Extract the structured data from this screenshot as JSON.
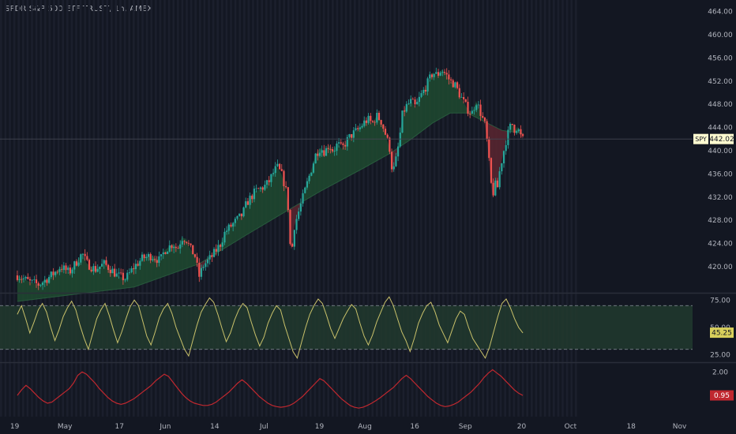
{
  "chart_title": "SPDR S&P 500 ETF TRUST, 1h, AMEX",
  "colors": {
    "background": "#131722",
    "bar_stripe": "#1b1f2c",
    "up": "#26a69a",
    "down": "#ef5350",
    "axis_text": "#b2b5be",
    "rsi_line": "#c9c16a",
    "rsi_band": "#213a2e",
    "lower_line": "#c0282f",
    "fill_up": "#1e4a30",
    "fill_down": "#5a2630",
    "last_price_bg": "#fffbd0",
    "rsi_label_bg": "#d8cf5b",
    "lower_label_bg": "#c0282f"
  },
  "chart_data": [
    {
      "type": "candlestick",
      "title": "SPDR S&P 500 ETF TRUST, 1h, AMEX",
      "symbol_label": "SPY",
      "last_value_label": "442.02",
      "ylim": [
        415.5,
        466
      ],
      "y_ticks": [
        "464.00",
        "460.00",
        "456.00",
        "452.00",
        "448.00",
        "444.00",
        "440.00",
        "436.00",
        "432.00",
        "428.00",
        "424.00",
        "420.00"
      ],
      "series_path": [
        [
          0,
          418.5
        ],
        [
          3,
          417.3
        ],
        [
          5,
          416.9
        ],
        [
          7,
          418.0
        ],
        [
          9,
          419.2
        ],
        [
          10,
          420.0
        ],
        [
          12,
          419.0
        ],
        [
          14,
          421.2
        ],
        [
          15,
          422.3
        ],
        [
          16,
          420.6
        ],
        [
          18,
          419.5
        ],
        [
          20,
          420.5
        ],
        [
          22,
          419.3
        ],
        [
          23,
          418.5
        ],
        [
          25,
          417.9
        ],
        [
          27,
          420.0
        ],
        [
          29,
          421.5
        ],
        [
          31,
          421.9
        ],
        [
          33,
          421.0
        ],
        [
          34,
          422.8
        ],
        [
          36,
          424.0
        ],
        [
          37,
          423.0
        ],
        [
          38,
          425.0
        ],
        [
          39,
          424.8
        ],
        [
          40,
          423.0
        ],
        [
          41,
          422.0
        ],
        [
          42,
          418.3
        ],
        [
          43,
          420.2
        ],
        [
          45,
          421.8
        ],
        [
          47,
          424.0
        ],
        [
          48,
          426.0
        ],
        [
          50,
          427.5
        ],
        [
          52,
          429.0
        ],
        [
          53,
          431.0
        ],
        [
          55,
          433.0
        ],
        [
          57,
          433.8
        ],
        [
          58,
          434.5
        ],
        [
          59,
          436.0
        ],
        [
          60,
          437.2
        ],
        [
          61,
          436.0
        ],
        [
          62,
          433.5
        ],
        [
          62.6,
          430.0
        ],
        [
          63,
          424.0
        ],
        [
          63.4,
          422.5
        ],
        [
          64,
          427.0
        ],
        [
          65,
          429.5
        ],
        [
          66,
          432.0
        ],
        [
          67,
          434.5
        ],
        [
          68,
          437.0
        ],
        [
          69,
          439.5
        ],
        [
          70,
          440.5
        ],
        [
          71,
          439.8
        ],
        [
          72,
          441.0
        ],
        [
          73,
          440.0
        ],
        [
          74,
          441.2
        ],
        [
          75,
          440.3
        ],
        [
          76,
          441.6
        ],
        [
          77,
          442.6
        ],
        [
          78,
          443.2
        ],
        [
          79,
          443.8
        ],
        [
          80,
          444.8
        ],
        [
          81,
          445.4
        ],
        [
          82,
          444.7
        ],
        [
          83,
          446.0
        ],
        [
          84,
          445.2
        ],
        [
          85,
          443.0
        ],
        [
          86,
          440.5
        ],
        [
          86.7,
          436.0
        ],
        [
          87.5,
          438.5
        ],
        [
          88.3,
          442.0
        ],
        [
          89,
          446.5
        ],
        [
          90,
          447.8
        ],
        [
          91,
          448.5
        ],
        [
          92,
          447.5
        ],
        [
          93,
          449.2
        ],
        [
          94,
          450.5
        ],
        [
          95,
          452.0
        ],
        [
          96,
          453.5
        ],
        [
          97,
          453.0
        ],
        [
          98,
          454.0
        ],
        [
          99,
          453.2
        ],
        [
          100,
          452.0
        ],
        [
          101,
          451.5
        ],
        [
          102,
          450.0
        ],
        [
          103,
          448.5
        ],
        [
          104,
          447.2
        ],
        [
          105,
          446.4
        ],
        [
          106,
          448.6
        ],
        [
          107,
          446.6
        ],
        [
          108,
          444.5
        ],
        [
          108.7,
          440.5
        ],
        [
          109.2,
          436.0
        ],
        [
          109.8,
          432.0
        ],
        [
          110.3,
          434.5
        ],
        [
          110.8,
          433.0
        ],
        [
          111.5,
          436.8
        ],
        [
          112,
          438.6
        ],
        [
          112.8,
          441.5
        ],
        [
          113.5,
          443.3
        ],
        [
          114.2,
          444.8
        ],
        [
          115,
          443.5
        ],
        [
          115.5,
          444.2
        ],
        [
          116.2,
          442.6
        ],
        [
          116.8,
          442.0
        ]
      ],
      "ma_path": [
        [
          0,
          414.0
        ],
        [
          27,
          416.5
        ],
        [
          42,
          420.5
        ],
        [
          53,
          425.5
        ],
        [
          62,
          429.5
        ],
        [
          70,
          433.0
        ],
        [
          80,
          437.0
        ],
        [
          86,
          439.5
        ],
        [
          91,
          442.0
        ],
        [
          96,
          444.8
        ],
        [
          100,
          446.5
        ],
        [
          104,
          446.5
        ],
        [
          108,
          445.0
        ],
        [
          112,
          443.5
        ],
        [
          116.8,
          443.0
        ]
      ]
    },
    {
      "type": "line",
      "panel": "oscillator",
      "last_value_label": "45.25",
      "ylim": [
        19,
        81
      ],
      "band": [
        30,
        70
      ],
      "y_ticks": [
        "75.00",
        "50.00",
        "25.00"
      ],
      "values": [
        62,
        70,
        58,
        45,
        55,
        66,
        72,
        64,
        50,
        38,
        48,
        60,
        68,
        74,
        66,
        52,
        40,
        30,
        44,
        58,
        66,
        72,
        61,
        48,
        36,
        46,
        58,
        69,
        75,
        70,
        56,
        42,
        34,
        46,
        59,
        67,
        72,
        63,
        50,
        40,
        30,
        24,
        38,
        52,
        64,
        71,
        77,
        73,
        62,
        49,
        37,
        45,
        57,
        66,
        72,
        68,
        55,
        43,
        33,
        41,
        54,
        63,
        70,
        66,
        52,
        40,
        28,
        22,
        36,
        50,
        62,
        70,
        76,
        72,
        61,
        49,
        40,
        49,
        58,
        65,
        71,
        67,
        54,
        42,
        34,
        43,
        55,
        64,
        73,
        78,
        70,
        58,
        46,
        38,
        28,
        40,
        54,
        63,
        70,
        73,
        64,
        52,
        44,
        36,
        47,
        58,
        65,
        62,
        50,
        40,
        34,
        28,
        22,
        32,
        46,
        60,
        72,
        76,
        68,
        58,
        50,
        45
      ]
    },
    {
      "type": "line",
      "panel": "lower",
      "last_value_label": "0.95",
      "ylim": [
        0,
        2.4
      ],
      "y_ticks": [
        "2.00"
      ],
      "values": [
        0.95,
        1.2,
        1.4,
        1.25,
        1.05,
        0.85,
        0.7,
        0.6,
        0.65,
        0.8,
        0.95,
        1.1,
        1.25,
        1.5,
        1.85,
        2.0,
        1.9,
        1.7,
        1.5,
        1.25,
        1.05,
        0.85,
        0.7,
        0.6,
        0.55,
        0.6,
        0.7,
        0.8,
        0.95,
        1.1,
        1.25,
        1.4,
        1.6,
        1.75,
        1.9,
        1.8,
        1.55,
        1.3,
        1.05,
        0.85,
        0.7,
        0.6,
        0.55,
        0.5,
        0.5,
        0.55,
        0.65,
        0.8,
        0.95,
        1.1,
        1.3,
        1.5,
        1.65,
        1.5,
        1.3,
        1.1,
        0.9,
        0.75,
        0.6,
        0.5,
        0.45,
        0.42,
        0.45,
        0.5,
        0.6,
        0.75,
        0.9,
        1.1,
        1.3,
        1.5,
        1.7,
        1.6,
        1.4,
        1.2,
        1.0,
        0.8,
        0.65,
        0.5,
        0.42,
        0.38,
        0.42,
        0.5,
        0.6,
        0.72,
        0.85,
        1.0,
        1.15,
        1.3,
        1.5,
        1.7,
        1.85,
        1.7,
        1.5,
        1.3,
        1.1,
        0.9,
        0.75,
        0.6,
        0.5,
        0.45,
        0.48,
        0.55,
        0.65,
        0.8,
        0.95,
        1.1,
        1.3,
        1.5,
        1.75,
        1.95,
        2.1,
        1.95,
        1.8,
        1.6,
        1.4,
        1.2,
        1.05,
        0.95
      ]
    }
  ],
  "x_axis": {
    "ticks": [
      {
        "label": "19",
        "x": -0.6
      },
      {
        "label": "May",
        "x": 11
      },
      {
        "label": "17",
        "x": 23.6
      },
      {
        "label": "Jun",
        "x": 34.2
      },
      {
        "label": "14",
        "x": 45.6
      },
      {
        "label": "Jul",
        "x": 57
      },
      {
        "label": "19",
        "x": 69.8
      },
      {
        "label": "Aug",
        "x": 80.3
      },
      {
        "label": "16",
        "x": 91.8
      },
      {
        "label": "Sep",
        "x": 103.5
      },
      {
        "label": "20",
        "x": 116.5
      },
      {
        "label": "Oct",
        "x": 127.8
      },
      {
        "label": "18",
        "x": 141.8
      },
      {
        "label": "Nov",
        "x": 153
      }
    ],
    "xlim": [
      -4,
      156
    ]
  }
}
